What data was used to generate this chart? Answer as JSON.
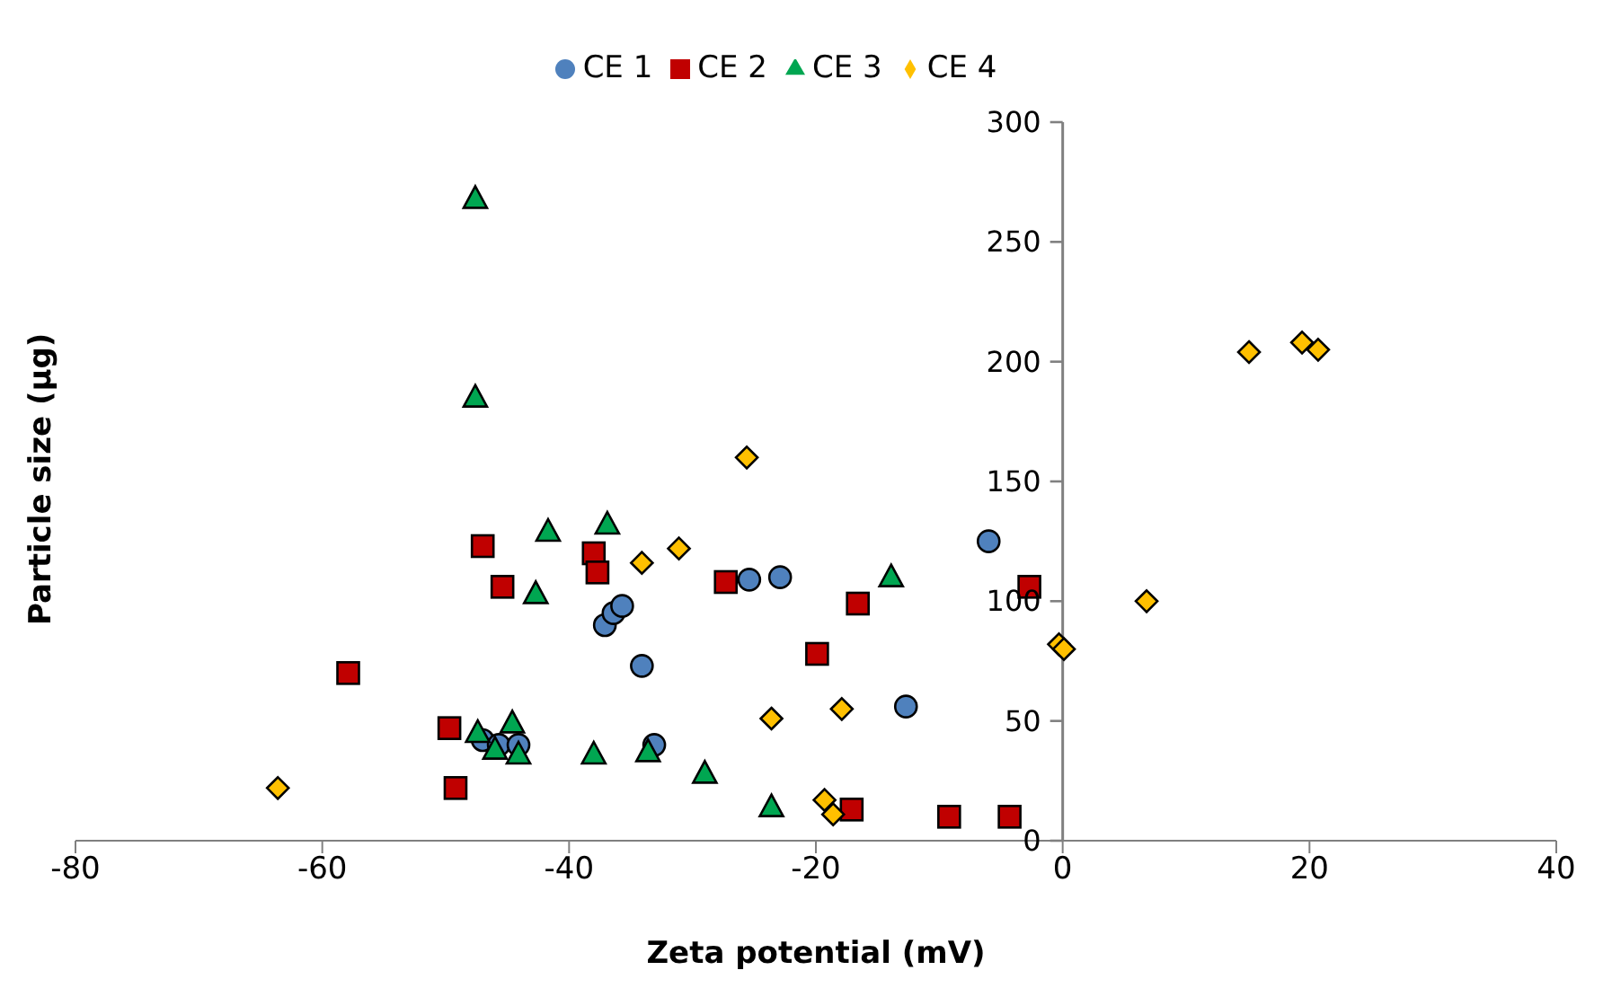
{
  "chart_data": {
    "type": "scatter",
    "xlabel": "Zeta potential (mV)",
    "ylabel": "Particle size (µg)",
    "xlim": [
      -80,
      40
    ],
    "xticks": [
      -80,
      -60,
      -40,
      -20,
      0,
      20,
      40
    ],
    "ylim": [
      0,
      300
    ],
    "yticks": [
      0,
      50,
      100,
      150,
      200,
      250,
      300
    ],
    "grid": false,
    "legend": "top",
    "series": [
      {
        "name": "CE 1",
        "color": "#4f81bd",
        "marker": "circle",
        "x": [
          -37.1,
          -36.4,
          -35.7,
          -34.1,
          -25.4,
          -22.9,
          -6,
          -12.7,
          -47,
          -45.7,
          -44.1,
          -33.1
        ],
        "values": [
          90,
          95,
          98,
          73,
          109,
          110,
          125,
          56,
          42,
          40,
          40,
          40
        ]
      },
      {
        "name": "CE 2",
        "color": "#c00000",
        "marker": "square",
        "x": [
          -57.9,
          -49.7,
          -49.2,
          -47,
          -45.4,
          -38,
          -37.7,
          -27.3,
          -16.6,
          -19.9,
          -17.1,
          -9.2,
          -4.3,
          -2.7
        ],
        "values": [
          70,
          47,
          22,
          123,
          106,
          120,
          112,
          108,
          99,
          78,
          13,
          10,
          10,
          106
        ]
      },
      {
        "name": "CE 3",
        "color": "#00a651",
        "marker": "triangle",
        "x": [
          -47.6,
          -47.6,
          -41.7,
          -36.9,
          -42.7,
          -47.4,
          -44.6,
          -46,
          -44.1,
          -38,
          -33.6,
          -29,
          -23.6,
          -13.9
        ],
        "values": [
          268,
          185,
          129,
          132,
          103,
          45,
          49,
          38,
          36,
          36,
          37,
          28,
          14,
          110
        ]
      },
      {
        "name": "CE 4",
        "color": "#ffc000",
        "marker": "diamond",
        "x": [
          -63.6,
          -34.1,
          -31.1,
          -25.6,
          -23.6,
          -17.9,
          -19.3,
          -18.6,
          -0.3,
          0.1,
          6.8,
          15.1,
          19.4,
          20.7
        ],
        "values": [
          22,
          116,
          122,
          160,
          51,
          55,
          17,
          11,
          82,
          80,
          100,
          204,
          208,
          205
        ]
      }
    ]
  }
}
